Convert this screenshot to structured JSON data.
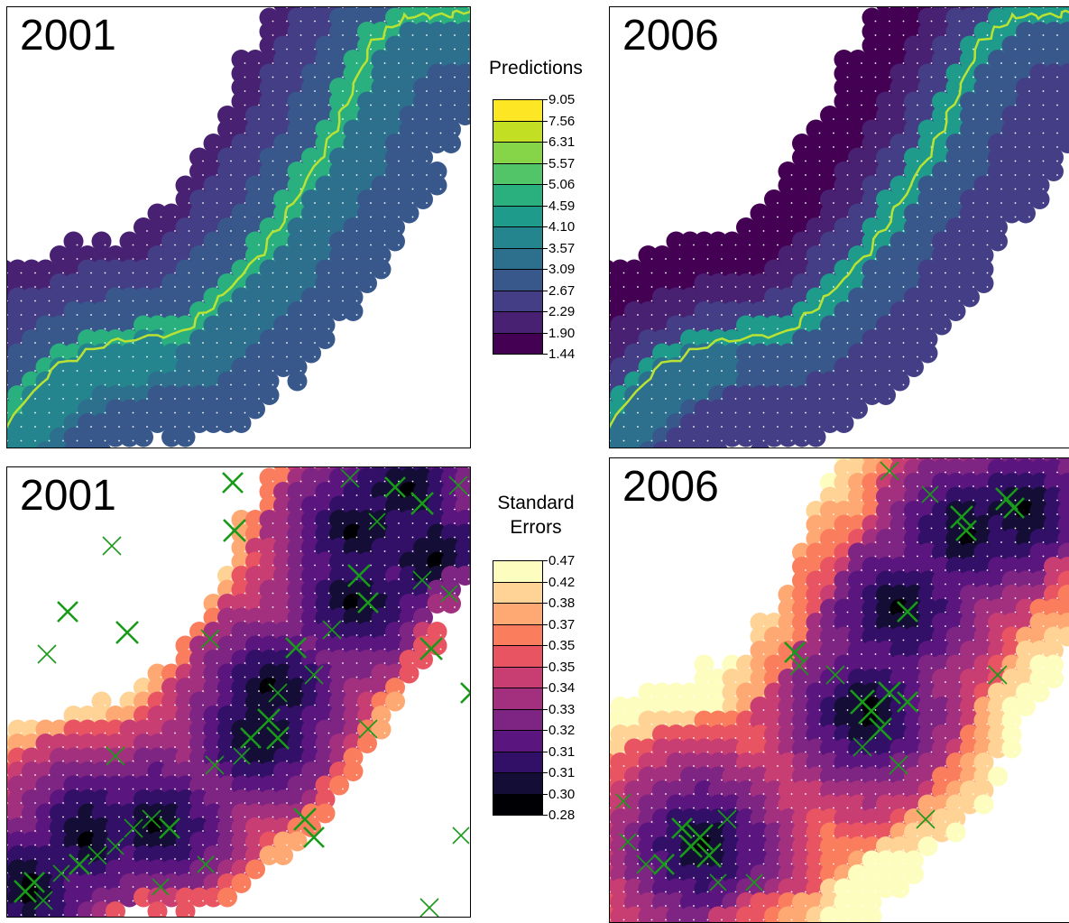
{
  "panels": {
    "pred_2001": {
      "year": "2001"
    },
    "pred_2006": {
      "year": "2006"
    },
    "se_2001": {
      "year": "2001"
    },
    "se_2006": {
      "year": "2006"
    }
  },
  "legend_predictions": {
    "title": "Predictions",
    "breaks": [
      "9.05",
      "7.56",
      "6.31",
      "5.57",
      "5.06",
      "4.59",
      "4.10",
      "3.57",
      "3.09",
      "2.67",
      "2.29",
      "1.90",
      "1.44"
    ],
    "colors": [
      "#fde725",
      "#c2df23",
      "#86d549",
      "#52c569",
      "#2ab07f",
      "#1e9b8a",
      "#25858e",
      "#2d708e",
      "#38588c",
      "#433e85",
      "#482173",
      "#440154"
    ]
  },
  "legend_errors": {
    "title_line1": "Standard",
    "title_line2": "Errors",
    "breaks": [
      "0.47",
      "0.42",
      "0.38",
      "0.37",
      "0.35",
      "0.35",
      "0.34",
      "0.33",
      "0.32",
      "0.31",
      "0.31",
      "0.30",
      "0.28"
    ],
    "colors": [
      "#fcfdbf",
      "#fed395",
      "#fea973",
      "#fa7d5e",
      "#e95462",
      "#c83e73",
      "#a3307e",
      "#7e2482",
      "#5a167e",
      "#331068",
      "#140e36",
      "#000004"
    ]
  },
  "marker": {
    "symbol": "x-cross",
    "color": "#1a9a1a"
  },
  "style": {
    "point_color_missing": "#ffffff"
  }
}
